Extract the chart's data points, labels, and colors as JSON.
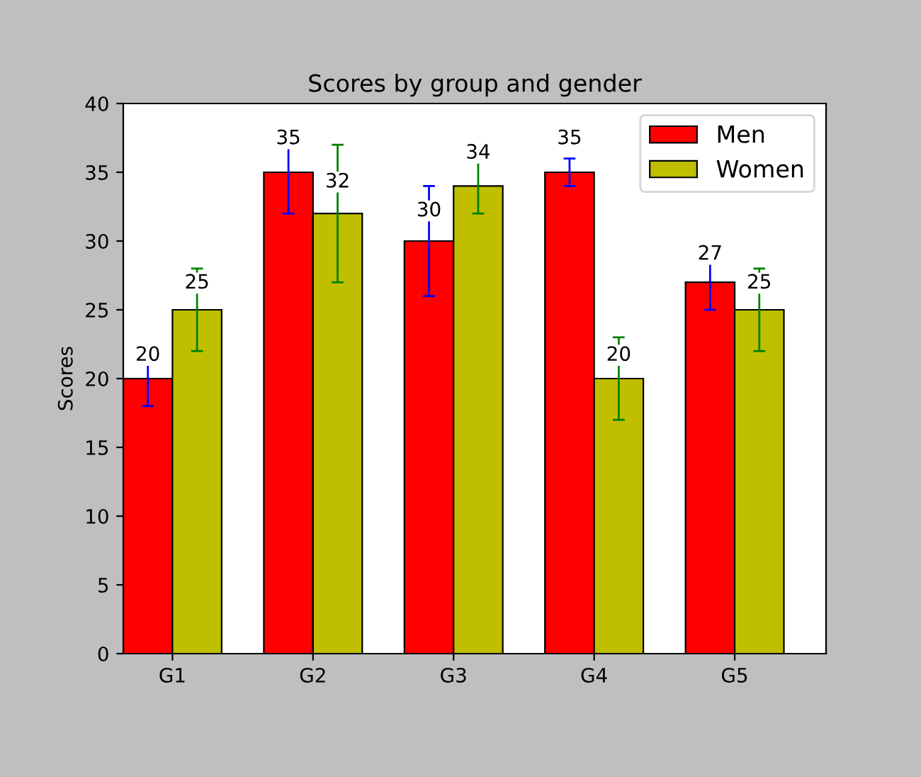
{
  "chart_data": {
    "type": "bar",
    "title": "Scores by group and gender",
    "ylabel": "Scores",
    "categories": [
      "G1",
      "G2",
      "G3",
      "G4",
      "G5"
    ],
    "series": [
      {
        "name": "Men",
        "color": "#ff0000",
        "values": [
          20,
          35,
          30,
          35,
          27
        ],
        "errors": [
          2,
          3,
          4,
          1,
          2
        ]
      },
      {
        "name": "Women",
        "color": "#bfbf00",
        "values": [
          25,
          32,
          34,
          20,
          25
        ],
        "errors": [
          3,
          5,
          2,
          3,
          3
        ]
      }
    ],
    "ylim": [
      0,
      40
    ],
    "yticks": [
      0,
      5,
      10,
      15,
      20,
      25,
      30,
      35,
      40
    ],
    "grid": false,
    "legend": "top right",
    "data_labels": true
  }
}
